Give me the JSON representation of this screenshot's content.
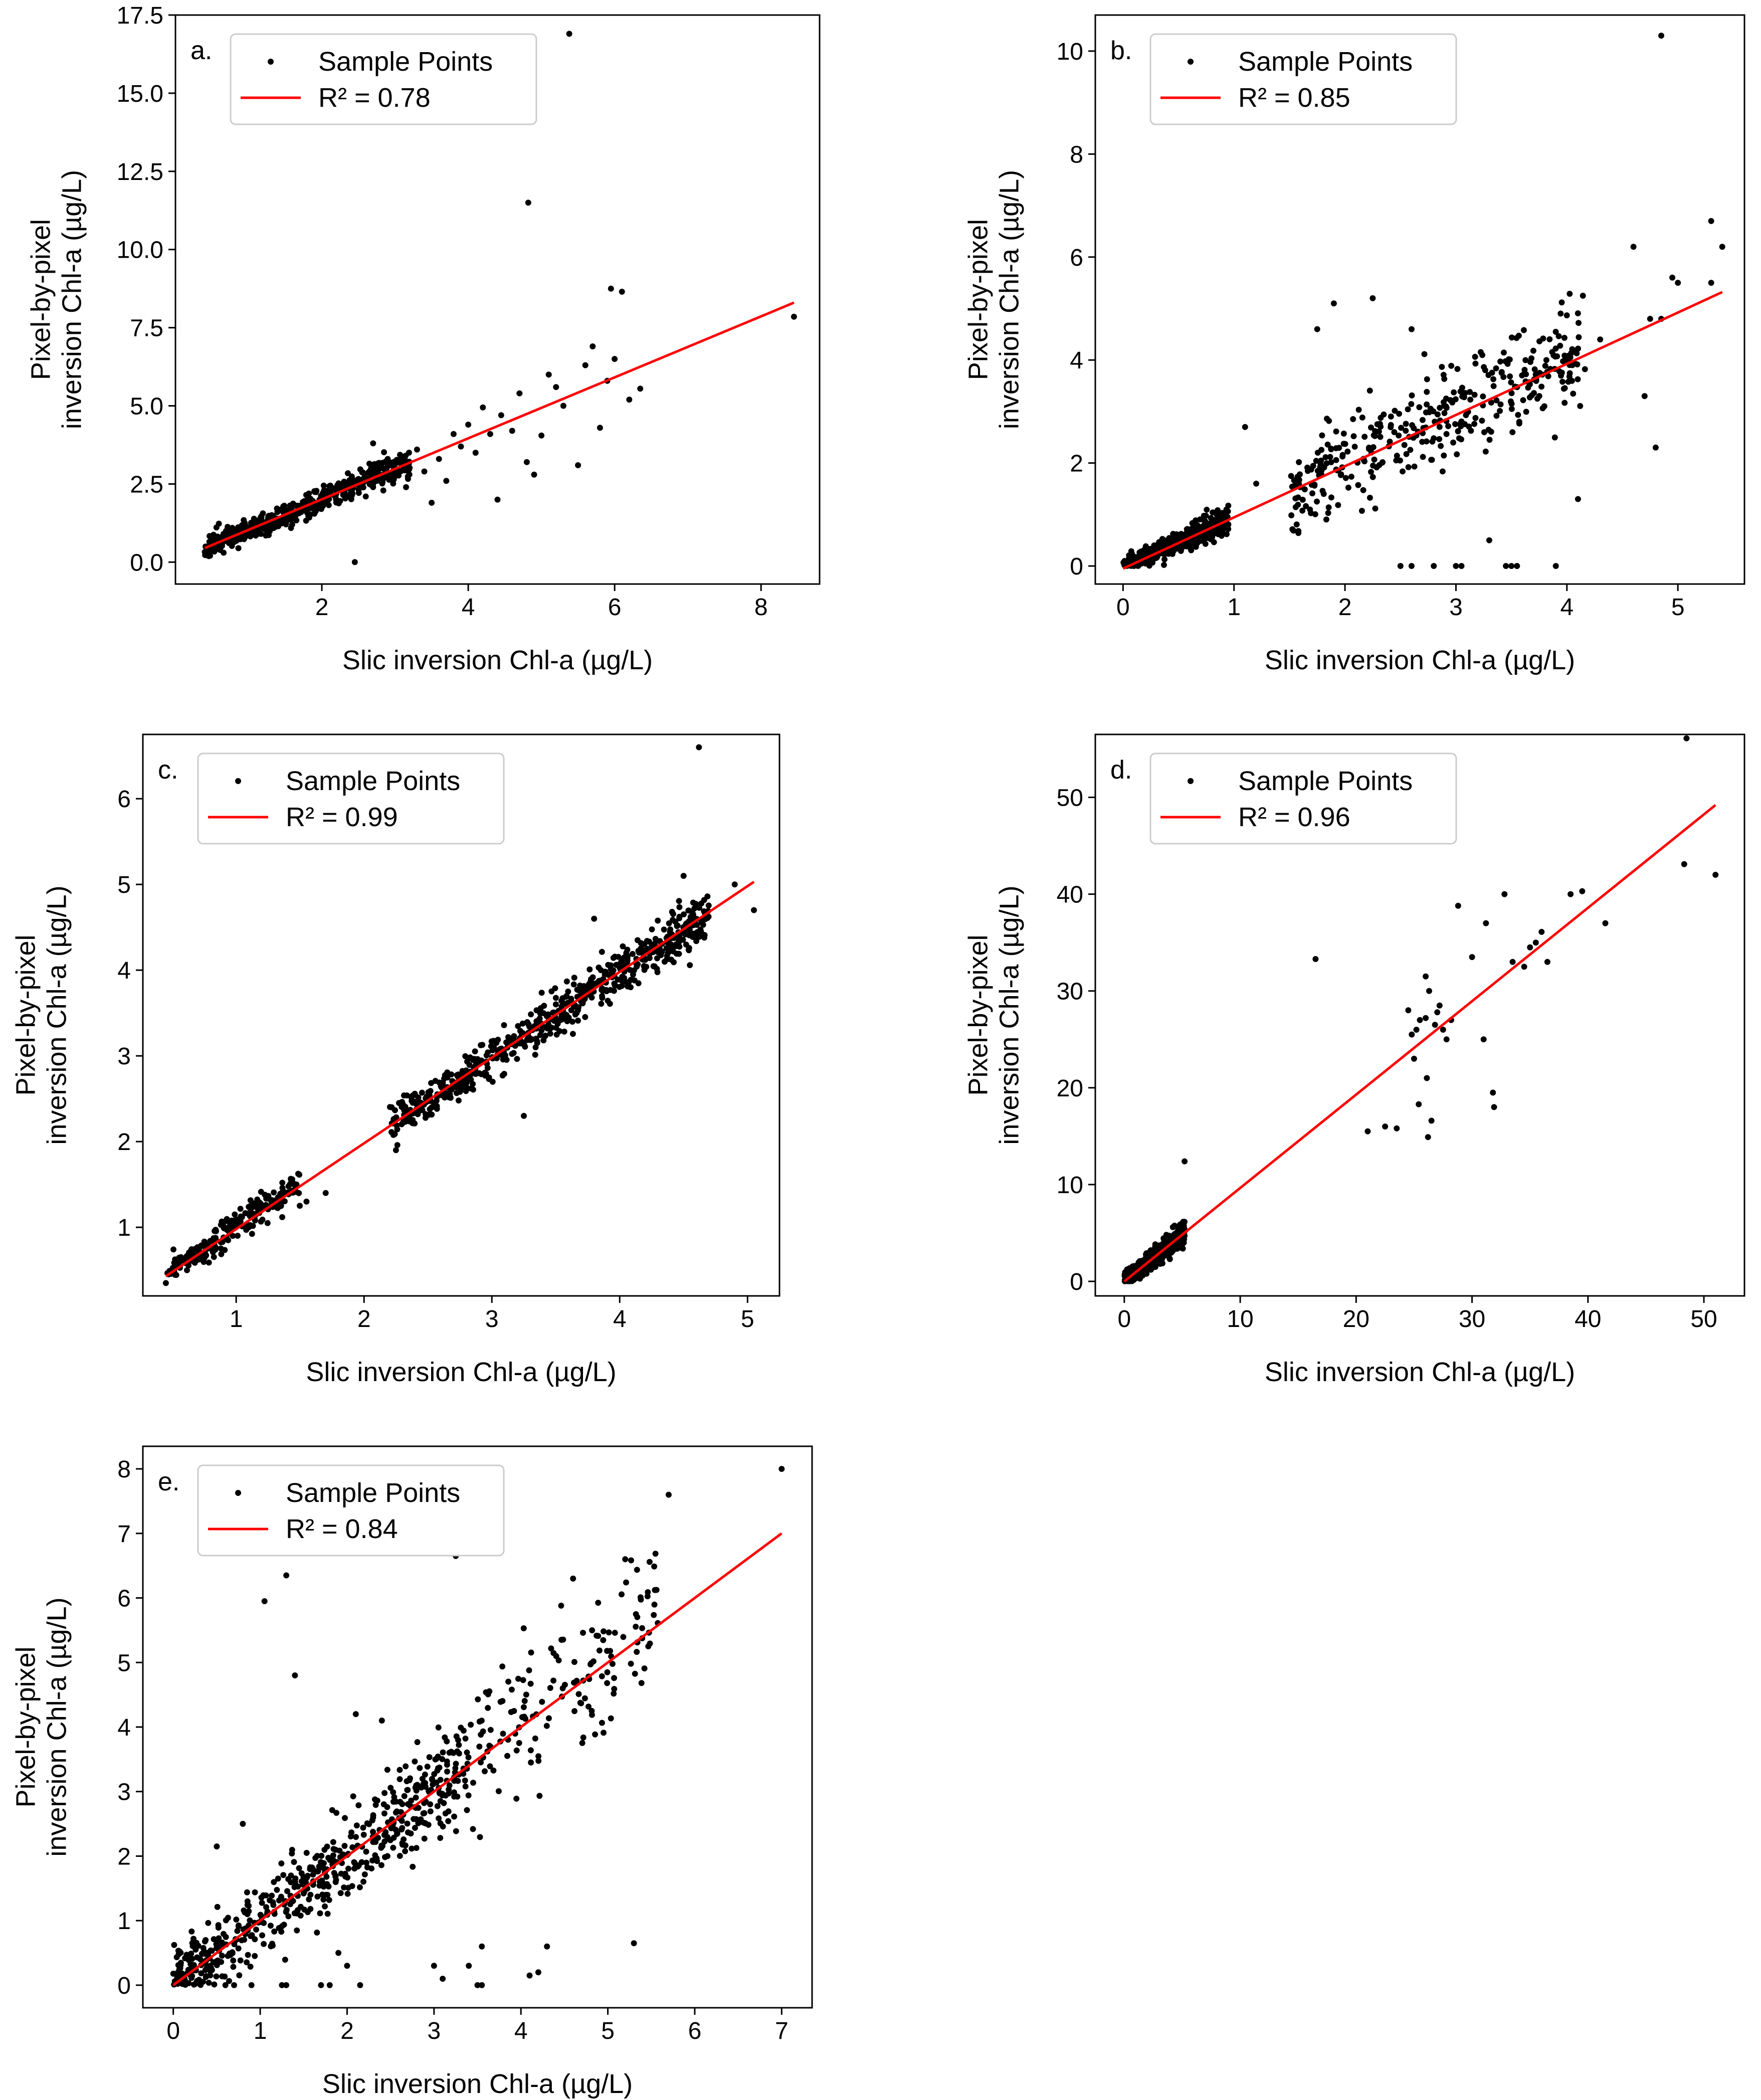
{
  "colors": {
    "points": "#000000",
    "fit_line": "#ff0000",
    "axes": "#000000",
    "legend_border": "#cccccc",
    "background": "#ffffff"
  },
  "chart_data": [
    {
      "type": "scatter",
      "panel_label": "a.",
      "xlabel": "Slic inversion Chl-a (µg/L)",
      "ylabel": [
        "Pixel-by-pixel",
        "inversion Chl-a (µg/L)"
      ],
      "xlim": [
        0,
        8.8
      ],
      "ylim": [
        -0.7,
        17.5
      ],
      "xticks": [
        2,
        4,
        6,
        8
      ],
      "yticks": [
        0.0,
        2.5,
        5.0,
        7.5,
        10.0,
        12.5,
        15.0,
        17.5
      ],
      "ytick_decimals": 1,
      "legend": {
        "position": "top-left",
        "points_label": "Sample Points",
        "fit_label": "R² = 0.78"
      },
      "series": [
        {
          "name": "Sample Points",
          "kind": "points",
          "cloud": {
            "n": 520,
            "x_range": [
              0.4,
              3.2
            ],
            "slope": 0.98,
            "intercept": 0.05,
            "spread": 0.25,
            "seed": 11
          },
          "points": [
            [
              5.38,
              16.9
            ],
            [
              4.82,
              11.5
            ],
            [
              5.95,
              8.75
            ],
            [
              6.1,
              8.65
            ],
            [
              8.45,
              7.85
            ],
            [
              5.7,
              6.9
            ],
            [
              6.35,
              5.55
            ],
            [
              5.0,
              4.05
            ],
            [
              4.6,
              4.2
            ],
            [
              5.5,
              3.1
            ],
            [
              4.9,
              2.8
            ],
            [
              4.4,
              2.0
            ],
            [
              2.45,
              0.0
            ],
            [
              3.5,
              1.9
            ],
            [
              4.2,
              4.95
            ],
            [
              4.7,
              5.4
            ],
            [
              5.2,
              5.6
            ],
            [
              3.9,
              3.7
            ],
            [
              4.0,
              4.4
            ],
            [
              3.6,
              3.3
            ],
            [
              5.6,
              6.3
            ],
            [
              6.0,
              6.5
            ],
            [
              3.3,
              3.6
            ],
            [
              2.7,
              3.8
            ],
            [
              4.3,
              4.1
            ],
            [
              5.8,
              4.3
            ],
            [
              3.7,
              2.6
            ],
            [
              4.45,
              4.7
            ],
            [
              5.1,
              6.0
            ],
            [
              3.15,
              2.4
            ],
            [
              2.9,
              3.3
            ],
            [
              2.6,
              2.1
            ],
            [
              4.8,
              3.2
            ],
            [
              3.4,
              2.9
            ],
            [
              3.8,
              4.1
            ],
            [
              5.3,
              5.0
            ],
            [
              4.1,
              3.5
            ],
            [
              6.2,
              5.2
            ],
            [
              5.9,
              5.8
            ],
            [
              3.05,
              2.9
            ]
          ]
        },
        {
          "name": "R² = 0.78",
          "kind": "line",
          "x": [
            0.4,
            8.45
          ],
          "y": [
            0.45,
            8.3
          ]
        }
      ]
    },
    {
      "type": "scatter",
      "panel_label": "b.",
      "xlabel": "Slic inversion Chl-a (µg/L)",
      "ylabel": [
        "Pixel-by-pixel",
        "inversion Chl-a (µg/L)"
      ],
      "xlim": [
        -0.25,
        5.6
      ],
      "ylim": [
        -0.35,
        10.7
      ],
      "xticks": [
        0,
        1,
        2,
        3,
        4,
        5
      ],
      "yticks": [
        0,
        2,
        4,
        6,
        8,
        10
      ],
      "ytick_decimals": 0,
      "legend": {
        "position": "top-left",
        "points_label": "Sample Points",
        "fit_label": "R² = 0.85"
      },
      "series": [
        {
          "name": "Sample Points",
          "kind": "points",
          "cloud": {
            "n": 480,
            "x_range": [
              0.0,
              0.95
            ],
            "slope": 0.95,
            "intercept": 0.0,
            "spread": 0.12,
            "seed": 23
          },
          "cloud2": {
            "n": 360,
            "x_range": [
              1.5,
              4.2
            ],
            "slope": 1.0,
            "intercept": 0.0,
            "spread": 0.55,
            "seed": 29
          },
          "points": [
            [
              4.85,
              10.3
            ],
            [
              5.3,
              6.7
            ],
            [
              5.4,
              6.2
            ],
            [
              4.6,
              6.2
            ],
            [
              4.95,
              5.6
            ],
            [
              5.0,
              5.5
            ],
            [
              4.75,
              4.8
            ],
            [
              4.85,
              4.8
            ],
            [
              5.3,
              5.5
            ],
            [
              4.8,
              2.3
            ],
            [
              4.7,
              3.3
            ],
            [
              4.1,
              1.3
            ],
            [
              3.9,
              0.0
            ],
            [
              3.5,
              0.0
            ],
            [
              3.45,
              0.0
            ],
            [
              3.55,
              0.0
            ],
            [
              3.0,
              0.0
            ],
            [
              3.05,
              0.0
            ],
            [
              2.8,
              0.0
            ],
            [
              2.6,
              0.0
            ],
            [
              2.5,
              0.0
            ],
            [
              1.9,
              5.1
            ],
            [
              2.25,
              5.2
            ],
            [
              1.75,
              4.6
            ],
            [
              2.6,
              4.6
            ],
            [
              1.2,
              1.6
            ],
            [
              1.1,
              2.7
            ],
            [
              3.3,
              0.5
            ],
            [
              3.55,
              0.0
            ],
            [
              4.3,
              4.4
            ]
          ]
        },
        {
          "name": "R² = 0.85",
          "kind": "line",
          "x": [
            0.0,
            5.4
          ],
          "y": [
            -0.05,
            5.32
          ]
        }
      ]
    },
    {
      "type": "scatter",
      "panel_label": "c.",
      "xlabel": "Slic inversion Chl-a (µg/L)",
      "ylabel": [
        "Pixel-by-pixel",
        "inversion Chl-a (µg/L)"
      ],
      "xlim": [
        0.27,
        5.25
      ],
      "ylim": [
        0.2,
        6.75
      ],
      "xticks": [
        1,
        2,
        3,
        4,
        5
      ],
      "yticks": [
        1,
        2,
        3,
        4,
        5,
        6
      ],
      "ytick_decimals": 0,
      "legend": {
        "position": "top-left",
        "points_label": "Sample Points",
        "fit_label": "R² = 0.99"
      },
      "series": [
        {
          "name": "Sample Points",
          "kind": "points",
          "cloud": {
            "n": 230,
            "x_range": [
              0.45,
              1.5
            ],
            "slope": 0.98,
            "intercept": 0.02,
            "spread": 0.1,
            "seed": 37
          },
          "cloud2": {
            "n": 620,
            "x_range": [
              2.2,
              4.7
            ],
            "slope": 0.99,
            "intercept": 0.0,
            "spread": 0.14,
            "seed": 41
          },
          "points": [
            [
              4.62,
              6.6
            ],
            [
              5.05,
              4.7
            ],
            [
              4.9,
              5.0
            ],
            [
              4.5,
              5.1
            ],
            [
              3.8,
              4.6
            ],
            [
              3.25,
              2.3
            ],
            [
              1.7,
              1.4
            ],
            [
              1.55,
              1.3
            ],
            [
              2.25,
              1.9
            ],
            [
              0.45,
              0.35
            ]
          ]
        },
        {
          "name": "R² = 0.99",
          "kind": "line",
          "x": [
            0.45,
            5.05
          ],
          "y": [
            0.43,
            5.03
          ]
        }
      ]
    },
    {
      "type": "scatter",
      "panel_label": "d.",
      "xlabel": "Slic inversion Chl-a (µg/L)",
      "ylabel": [
        "Pixel-by-pixel",
        "inversion Chl-a (µg/L)"
      ],
      "xlim": [
        -2.5,
        53.5
      ],
      "ylim": [
        -1.5,
        56.5
      ],
      "xticks": [
        0,
        10,
        20,
        30,
        40,
        50
      ],
      "yticks": [
        0,
        10,
        20,
        30,
        40,
        50
      ],
      "ytick_decimals": 0,
      "legend": {
        "position": "top-left",
        "points_label": "Sample Points",
        "fit_label": "R² = 0.96"
      },
      "series": [
        {
          "name": "Sample Points",
          "kind": "points",
          "cloud": {
            "n": 650,
            "x_range": [
              0.0,
              5.2
            ],
            "slope": 0.95,
            "intercept": 0.1,
            "spread": 0.6,
            "seed": 53
          },
          "points": [
            [
              48.5,
              56.1
            ],
            [
              48.3,
              43.1
            ],
            [
              51.0,
              42.0
            ],
            [
              41.5,
              37.0
            ],
            [
              39.5,
              40.3
            ],
            [
              38.5,
              40.0
            ],
            [
              35.0,
              34.5
            ],
            [
              36.0,
              36.1
            ],
            [
              34.5,
              32.5
            ],
            [
              36.5,
              33.0
            ],
            [
              33.5,
              33.0
            ],
            [
              16.5,
              33.3
            ],
            [
              31.2,
              37.0
            ],
            [
              31.0,
              25.0
            ],
            [
              28.8,
              38.8
            ],
            [
              31.9,
              18.0
            ],
            [
              31.8,
              19.5
            ],
            [
              26.0,
              31.5
            ],
            [
              26.3,
              30.0
            ],
            [
              25.5,
              27.0
            ],
            [
              26.8,
              26.5
            ],
            [
              27.5,
              26.0
            ],
            [
              24.8,
              25.5
            ],
            [
              25.0,
              23.0
            ],
            [
              26.1,
              21.0
            ],
            [
              26.5,
              16.6
            ],
            [
              26.2,
              14.9
            ],
            [
              22.5,
              16.0
            ],
            [
              21.0,
              15.5
            ],
            [
              23.5,
              15.8
            ],
            [
              25.4,
              18.3
            ],
            [
              27.2,
              28.5
            ],
            [
              27.8,
              25.0
            ],
            [
              28.2,
              27.0
            ],
            [
              24.5,
              28.0
            ],
            [
              25.2,
              26.0
            ],
            [
              26.0,
              27.2
            ],
            [
              27.0,
              27.8
            ],
            [
              5.2,
              12.4
            ],
            [
              30.0,
              33.5
            ],
            [
              32.8,
              40.0
            ],
            [
              35.5,
              35.0
            ]
          ]
        },
        {
          "name": "R² = 0.96",
          "kind": "line",
          "x": [
            0.0,
            51.0
          ],
          "y": [
            0.0,
            49.2
          ]
        }
      ]
    },
    {
      "type": "scatter",
      "panel_label": "e.",
      "xlabel": "Slic inversion Chl-a (µg/L)",
      "ylabel": [
        "Pixel-by-pixel",
        "inversion Chl-a (µg/L)"
      ],
      "xlim": [
        -0.35,
        7.35
      ],
      "ylim": [
        -0.35,
        8.35
      ],
      "xticks": [
        0,
        1,
        2,
        3,
        4,
        5,
        6,
        7
      ],
      "yticks": [
        0,
        1,
        2,
        3,
        4,
        5,
        6,
        7,
        8
      ],
      "ytick_decimals": 0,
      "legend": {
        "position": "top-left",
        "points_label": "Sample Points",
        "fit_label": "R² = 0.84"
      },
      "series": [
        {
          "name": "Sample Points",
          "kind": "points",
          "cloud": {
            "n": 560,
            "x_range": [
              0.0,
              3.4
            ],
            "slope": 1.0,
            "intercept": 0.0,
            "spread": 0.38,
            "seed": 67
          },
          "cloud2": {
            "n": 150,
            "x_range": [
              3.4,
              5.6
            ],
            "slope": 1.0,
            "intercept": 0.2,
            "spread": 0.65,
            "seed": 71
          },
          "points": [
            [
              7.0,
              8.0
            ],
            [
              5.7,
              7.6
            ],
            [
              1.3,
              6.35
            ],
            [
              1.05,
              5.95
            ],
            [
              1.4,
              4.8
            ],
            [
              5.2,
              6.6
            ],
            [
              3.25,
              6.65
            ],
            [
              4.6,
              6.3
            ],
            [
              0.5,
              2.15
            ],
            [
              0.8,
              2.5
            ],
            [
              2.1,
              4.2
            ],
            [
              2.4,
              4.1
            ],
            [
              4.2,
              0.2
            ],
            [
              4.3,
              0.6
            ],
            [
              3.55,
              0.6
            ],
            [
              3.5,
              0.0
            ],
            [
              3.55,
              0.0
            ],
            [
              3.0,
              0.3
            ],
            [
              3.1,
              0.1
            ],
            [
              3.4,
              0.3
            ],
            [
              5.3,
              0.65
            ],
            [
              4.1,
              0.15
            ],
            [
              2.15,
              0.0
            ],
            [
              1.8,
              0.0
            ],
            [
              1.7,
              0.0
            ],
            [
              1.25,
              0.0
            ],
            [
              1.3,
              0.0
            ],
            [
              0.9,
              0.0
            ],
            [
              0.7,
              0.0
            ],
            [
              0.6,
              0.0
            ],
            [
              1.9,
              0.5
            ],
            [
              2.0,
              0.3
            ]
          ]
        },
        {
          "name": "R² = 0.84",
          "kind": "line",
          "x": [
            0.0,
            7.0
          ],
          "y": [
            0.0,
            7.0
          ]
        }
      ]
    }
  ]
}
